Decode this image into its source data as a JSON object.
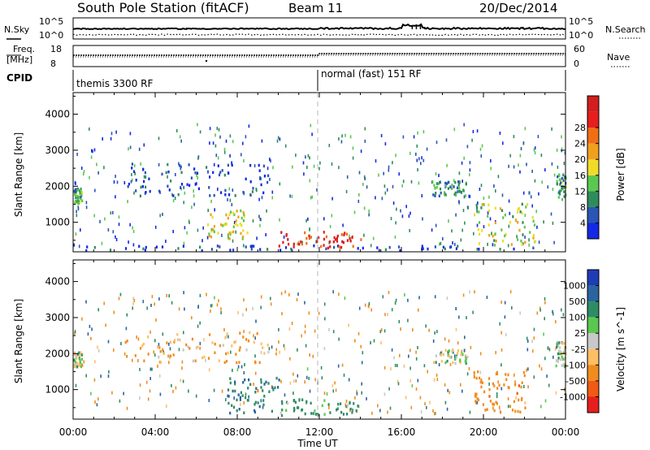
{
  "header": {
    "station": "South Pole Station (fitACF)",
    "beam": "Beam 11",
    "date": "20/Dec/2014"
  },
  "top_panels": {
    "nsky_label": "N.Sky",
    "nsky_ticks": [
      "10^5",
      "10^0"
    ],
    "nsearch_label": "N.Search",
    "nsearch_ticks": [
      "10^5",
      "10^0"
    ],
    "freq_label_1": "Freq.",
    "freq_label_2": "[MHz]",
    "freq_ticks": [
      "18",
      "8"
    ],
    "nave_label": "Nave",
    "nave_ticks": [
      "60",
      "0"
    ],
    "cpid_label": "CPID",
    "cpid_segments": [
      "themis 3300 RF",
      "normal (fast) 151 RF"
    ]
  },
  "chart_data": [
    {
      "type": "heatmap",
      "title": "",
      "xlabel": "Time UT",
      "ylabel": "Slant Range [km]",
      "xticks": [
        "00:00",
        "04:00",
        "08:00",
        "12:00",
        "16:00",
        "20:00",
        "00:00"
      ],
      "yticks": [
        "1000",
        "2000",
        "3000",
        "4000"
      ],
      "ylim": [
        180,
        4600
      ],
      "colorbar_label": "Power [dB]",
      "colorbar_ticks": [
        "4",
        "8",
        "12",
        "16",
        "20",
        "24",
        "28"
      ],
      "colorbar_colors": [
        "#1428e6",
        "#2a55b4",
        "#2e8c5a",
        "#5ac850",
        "#f0dc28",
        "#f0a01e",
        "#f06e14",
        "#e61e1e",
        "#d21e1e"
      ],
      "features": [
        {
          "t0": 0.0,
          "t1": 0.4,
          "r0": 1500,
          "r1": 1900,
          "value": 12
        },
        {
          "t0": 0.5,
          "t1": 22.5,
          "r0": 180,
          "r1": 320,
          "value": 6
        },
        {
          "t0": 2.5,
          "t1": 9.5,
          "r0": 1700,
          "r1": 2600,
          "value": 6
        },
        {
          "t0": 6.5,
          "t1": 8.5,
          "r0": 500,
          "r1": 1300,
          "value": 18
        },
        {
          "t0": 10.0,
          "t1": 14.0,
          "r0": 250,
          "r1": 700,
          "value": 28
        },
        {
          "t0": 17.5,
          "t1": 19.2,
          "r0": 1700,
          "r1": 2100,
          "value": 10
        },
        {
          "t0": 19.5,
          "t1": 22.5,
          "r0": 300,
          "r1": 1500,
          "value": 16
        },
        {
          "t0": 23.5,
          "t1": 24.0,
          "r0": 1600,
          "r1": 2300,
          "value": 12
        }
      ]
    },
    {
      "type": "heatmap",
      "title": "",
      "xlabel": "Time UT",
      "ylabel": "Slant Range [km]",
      "xticks": [
        "00:00",
        "04:00",
        "08:00",
        "12:00",
        "16:00",
        "20:00",
        "00:00"
      ],
      "yticks": [
        "1000",
        "2000",
        "3000",
        "4000"
      ],
      "ylim": [
        180,
        4600
      ],
      "colorbar_label": "Velocity [m s^-1]",
      "colorbar_ticks": [
        "1000",
        "500",
        "100",
        "25",
        "-25",
        "-100",
        "-500",
        "-1000"
      ],
      "colorbar_colors": [
        "#1e3cb4",
        "#2a64a0",
        "#2e8c64",
        "#5ac850",
        "#c8c8c8",
        "#ffbe64",
        "#f08c1e",
        "#f05a14",
        "#e61e1e"
      ],
      "features": [
        {
          "t0": 0.0,
          "t1": 0.4,
          "r0": 1600,
          "r1": 2000,
          "value": 0
        },
        {
          "t0": 2.5,
          "t1": 9.5,
          "r0": 1700,
          "r1": 2600,
          "value": -120
        },
        {
          "t0": 7.5,
          "t1": 10.0,
          "r0": 300,
          "r1": 1300,
          "value": 300
        },
        {
          "t0": 10.0,
          "t1": 14.0,
          "r0": 250,
          "r1": 700,
          "value": 120
        },
        {
          "t0": 17.5,
          "t1": 19.2,
          "r0": 1700,
          "r1": 2100,
          "value": 0
        },
        {
          "t0": 19.5,
          "t1": 22.0,
          "r0": 300,
          "r1": 1500,
          "value": -400
        },
        {
          "t0": 23.5,
          "t1": 24.0,
          "r0": 1600,
          "r1": 2300,
          "value": 0
        }
      ]
    }
  ]
}
